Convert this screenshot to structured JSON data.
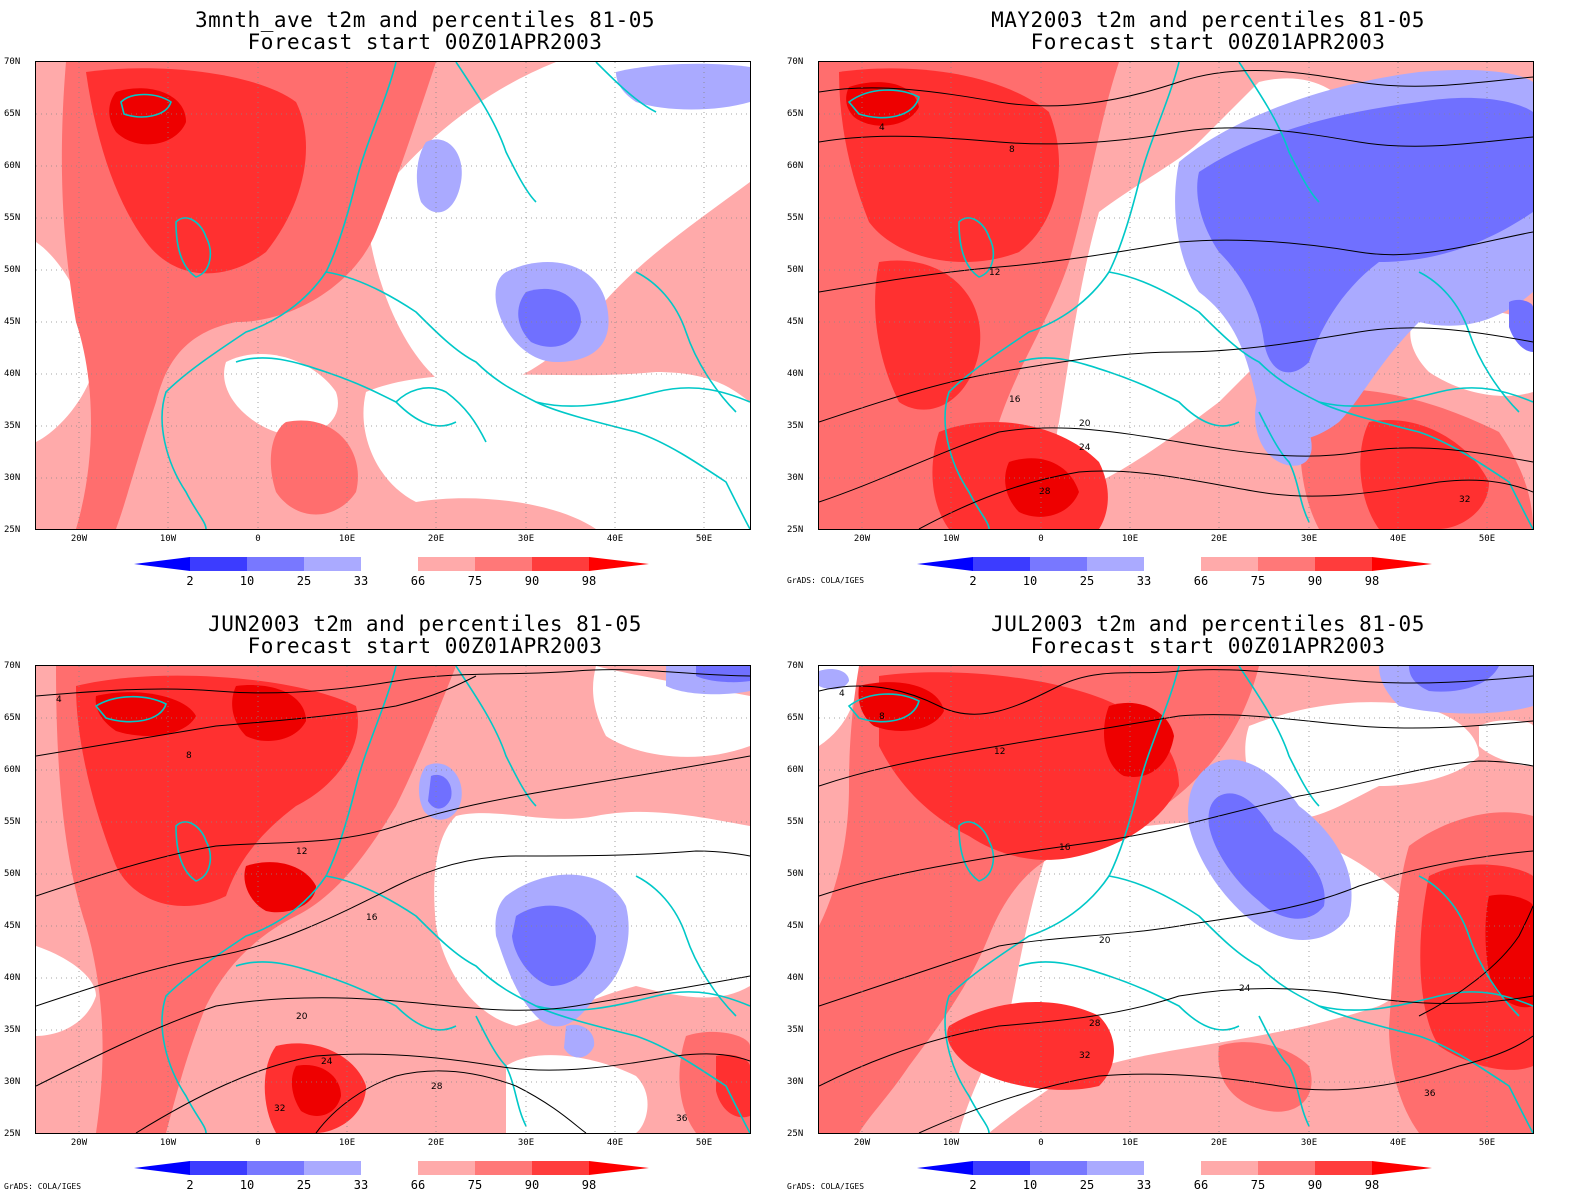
{
  "panels": [
    {
      "title_line1": "3mnth_ave t2m and percentiles 81-05",
      "title_line2": "Forecast start 00Z01APR2003",
      "credit": "",
      "contours": []
    },
    {
      "title_line1": "MAY2003 t2m and percentiles 81-05",
      "title_line2": "Forecast start 00Z01APR2003",
      "credit": "GrADS: COLA/IGES",
      "contours": [
        "4",
        "8",
        "12",
        "16",
        "20",
        "24",
        "28",
        "32"
      ]
    },
    {
      "title_line1": "JUN2003 t2m and percentiles 81-05",
      "title_line2": "Forecast start 00Z01APR2003",
      "credit": "GrADS: COLA/IGES",
      "contours": [
        "4",
        "8",
        "12",
        "16",
        "20",
        "24",
        "28",
        "32",
        "36"
      ]
    },
    {
      "title_line1": "JUL2003 t2m and percentiles 81-05",
      "title_line2": "Forecast start 00Z01APR2003",
      "credit": "GrADS: COLA/IGES",
      "contours": [
        "4",
        "8",
        "12",
        "16",
        "20",
        "24",
        "28",
        "32",
        "36"
      ]
    }
  ],
  "axes": {
    "lat_labels": [
      "70N",
      "65N",
      "60N",
      "55N",
      "50N",
      "45N",
      "40N",
      "35N",
      "30N",
      "25N"
    ],
    "lon_labels": [
      "20W",
      "10W",
      "0",
      "10E",
      "20E",
      "30E",
      "40E",
      "50E"
    ]
  },
  "colorbar": {
    "labels": [
      "2",
      "10",
      "25",
      "33",
      "66",
      "75",
      "90",
      "98"
    ],
    "colors": [
      "#0000ff",
      "#3c3cff",
      "#7878ff",
      "#aaaaff",
      "#ffffff",
      "#ffaaaa",
      "#ff7878",
      "#ff3c3c",
      "#ff0000"
    ]
  },
  "colors": {
    "coastline": "#00c8c8",
    "contour": "#000000",
    "warm_light": "#ffaaaa",
    "warm_mid": "#ff6e6e",
    "warm_strong": "#ff3030",
    "warm_max": "#ee0000",
    "cold_light": "#aaaaff",
    "cold_mid": "#7070ff"
  }
}
